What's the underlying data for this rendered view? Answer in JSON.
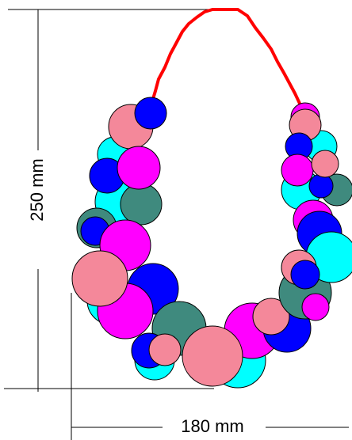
{
  "dimensions": {
    "height": "250 mm",
    "width": "180 mm"
  }
}
